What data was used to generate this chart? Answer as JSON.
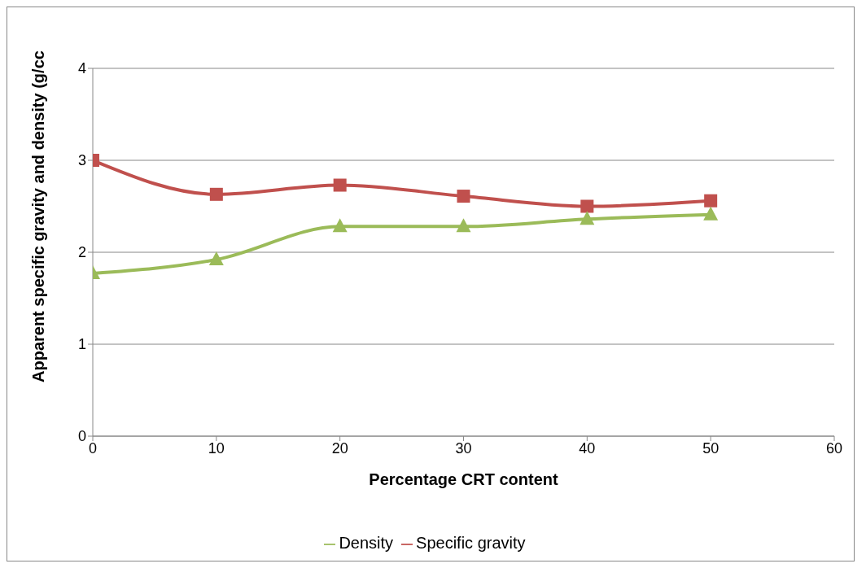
{
  "chart_data": {
    "type": "line",
    "xlabel": "Percentage CRT content",
    "ylabel": "Apparent specific gravity and density (g/cc",
    "x": [
      0,
      10,
      20,
      30,
      40,
      50
    ],
    "series": [
      {
        "name": "Specific gravity",
        "color": "#c0504d",
        "marker": "square",
        "values": [
          3.0,
          2.63,
          2.73,
          2.61,
          2.5,
          2.56
        ]
      },
      {
        "name": "Density",
        "color": "#9bbb59",
        "marker": "triangle",
        "values": [
          1.77,
          1.92,
          2.28,
          2.28,
          2.36,
          2.41
        ]
      }
    ],
    "xlim": [
      0,
      60
    ],
    "xticks": [
      0,
      10,
      20,
      30,
      40,
      50,
      60
    ],
    "ylim": [
      0,
      4
    ],
    "yticks": [
      0,
      1,
      2,
      3,
      4
    ],
    "grid": "y",
    "legend": "bottom",
    "line_style": "solid"
  }
}
